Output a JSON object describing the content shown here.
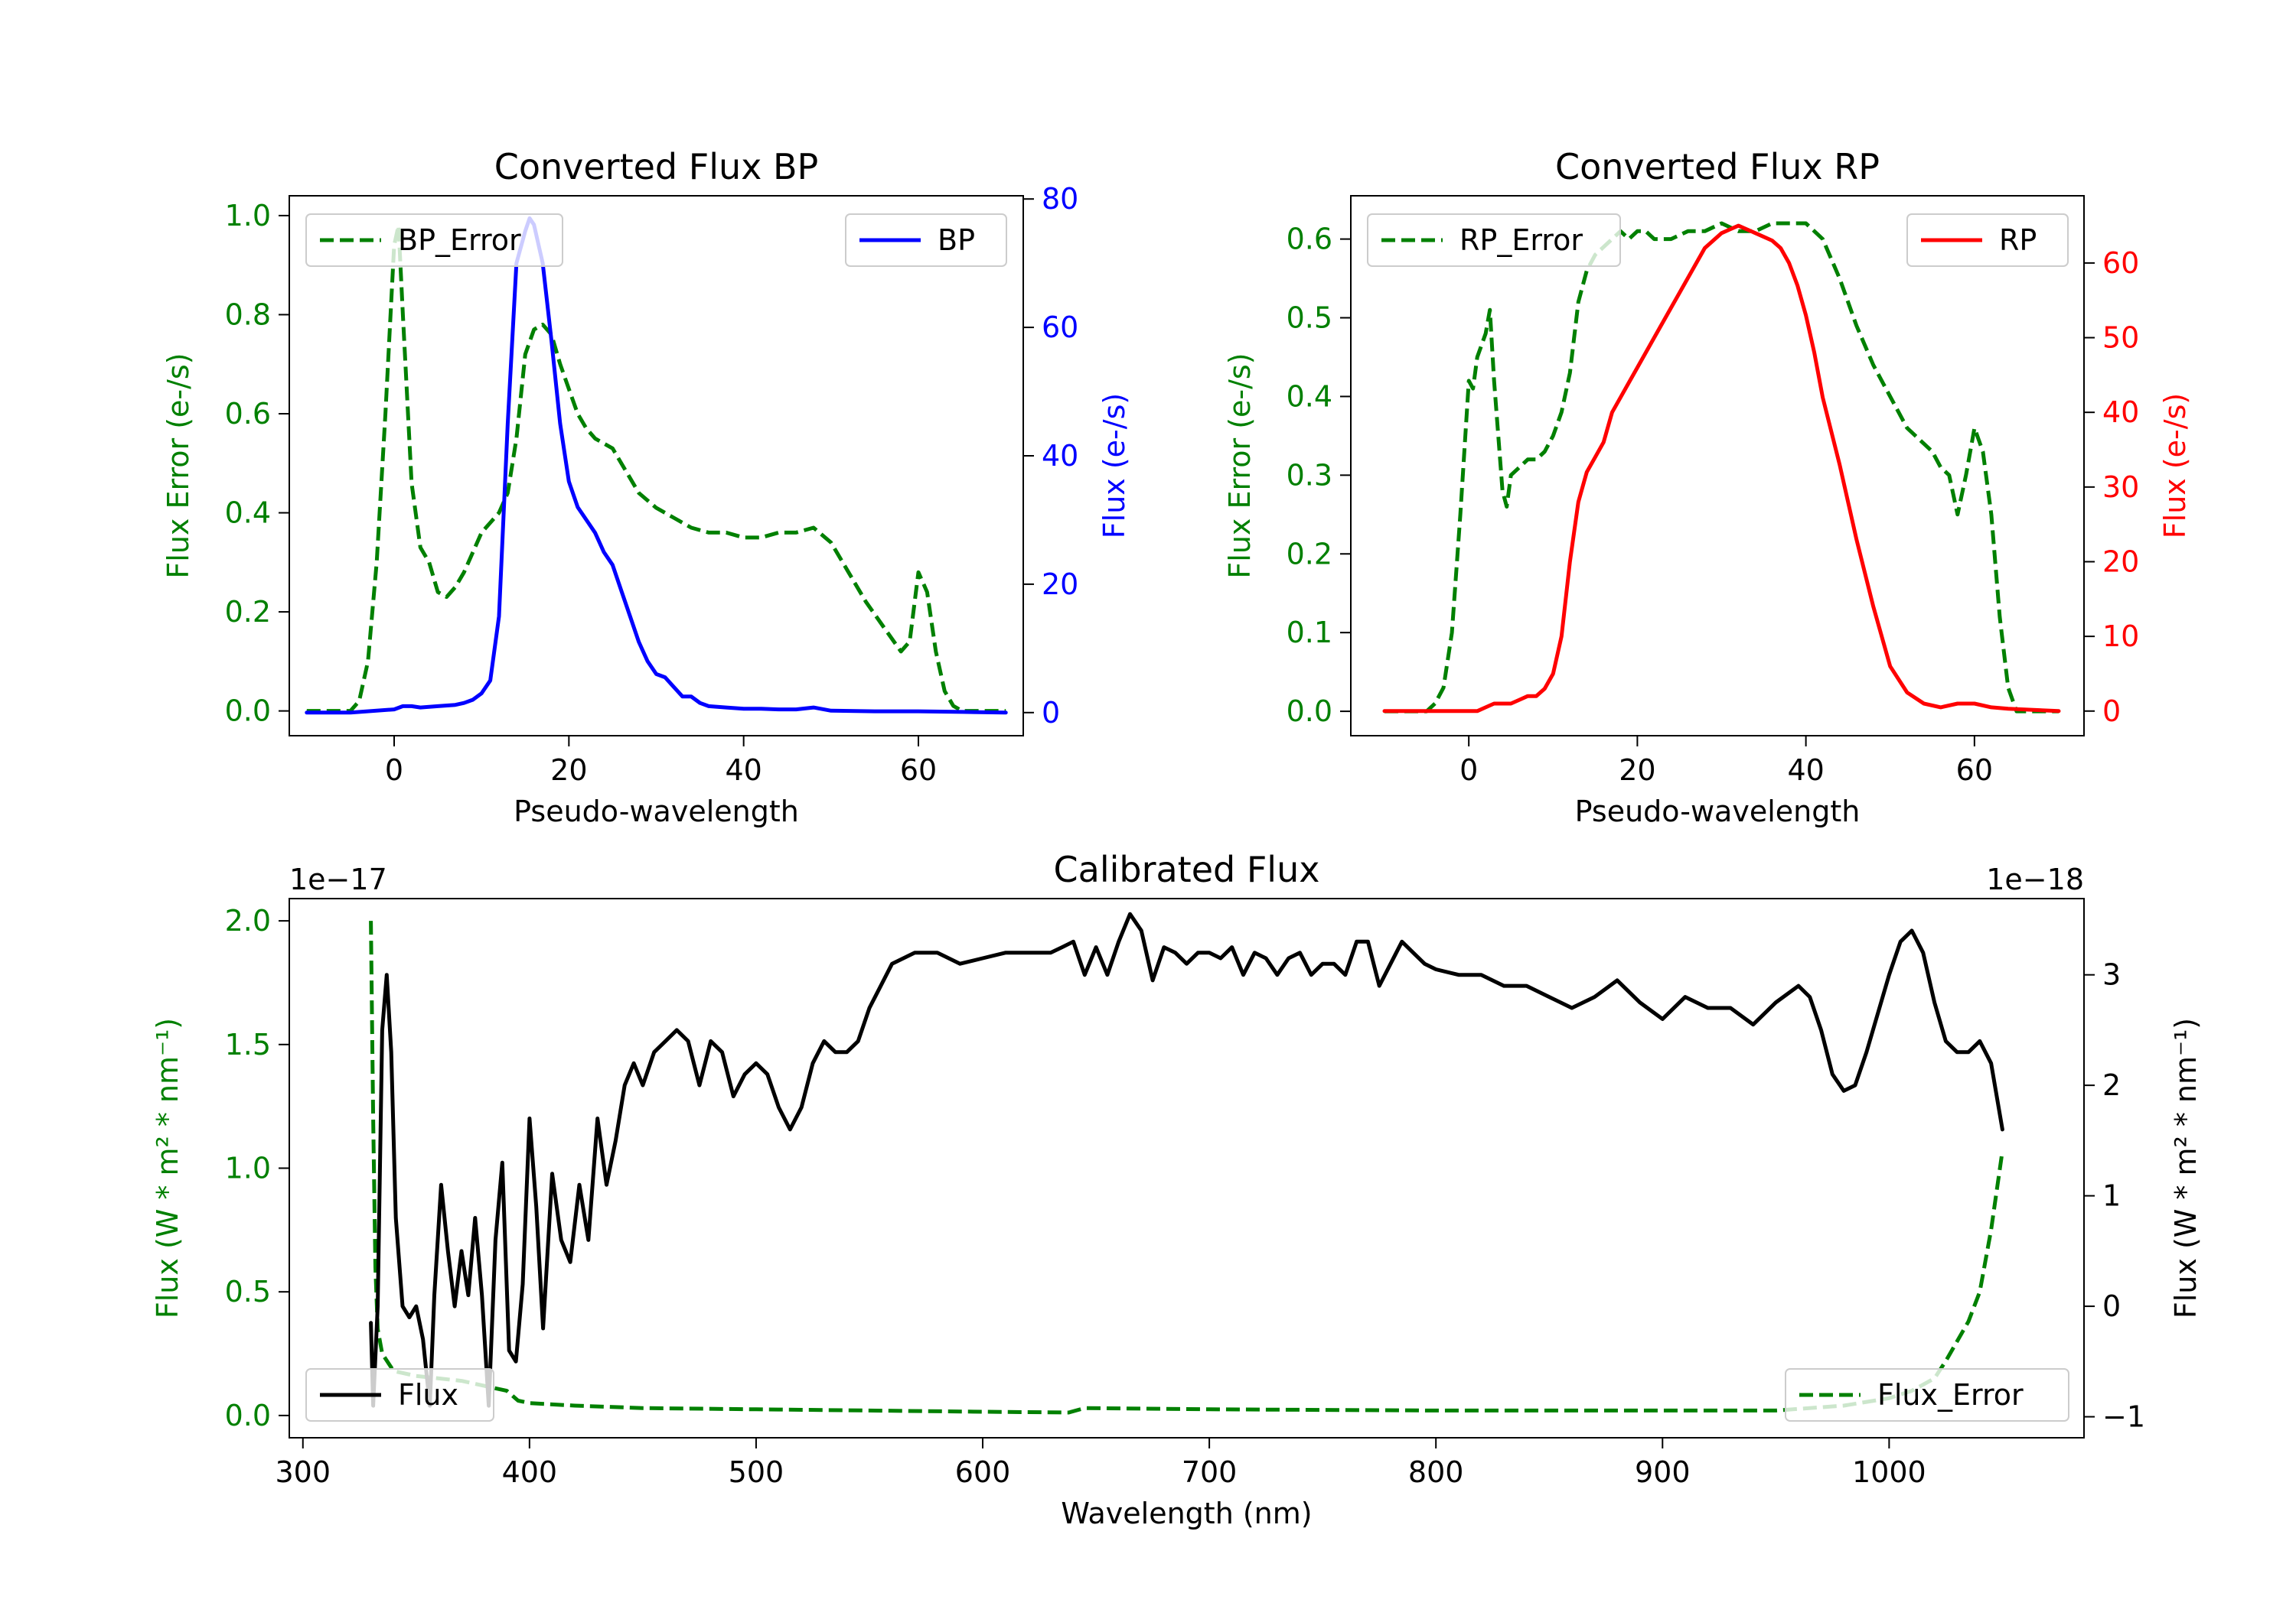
{
  "chart_data": [
    {
      "id": "bp",
      "type": "line",
      "title": "Converted Flux BP",
      "xlabel": "Pseudo-wavelength",
      "ylabel_left": "Flux Error (e-/s)",
      "ylabel_right": "Flux (e-/s)",
      "xlim": [
        -12,
        72
      ],
      "ylim_left": [
        -0.05,
        1.04
      ],
      "ylim_right": [
        -3.6,
        80.5
      ],
      "xticks": [
        0,
        20,
        40,
        60
      ],
      "yticks_left": [
        0.0,
        0.2,
        0.4,
        0.6,
        0.8,
        1.0
      ],
      "yticks_right": [
        0,
        20,
        40,
        60,
        80
      ],
      "left_color": "#008000",
      "right_color": "#0000ff",
      "series": [
        {
          "name": "BP_Error",
          "axis": "left",
          "style": "dashed",
          "color": "#008000",
          "legend": "top-left",
          "x": [
            -10,
            -5,
            -4,
            -3,
            -2,
            -1,
            0,
            0.5,
            1,
            2,
            3,
            4,
            5,
            6,
            7,
            8,
            9,
            10,
            11,
            12,
            13,
            14,
            15,
            16,
            17,
            18,
            19,
            20,
            21,
            22,
            23,
            24,
            25,
            26,
            27,
            28,
            30,
            32,
            34,
            36,
            38,
            40,
            42,
            44,
            46,
            48,
            50,
            52,
            54,
            56,
            58,
            59,
            60,
            61,
            62,
            63,
            64,
            65,
            66,
            70
          ],
          "values": [
            0.0,
            0.0,
            0.02,
            0.1,
            0.3,
            0.6,
            0.94,
            0.98,
            0.8,
            0.46,
            0.33,
            0.3,
            0.24,
            0.23,
            0.25,
            0.28,
            0.32,
            0.36,
            0.38,
            0.4,
            0.44,
            0.55,
            0.72,
            0.77,
            0.78,
            0.76,
            0.7,
            0.65,
            0.6,
            0.57,
            0.55,
            0.54,
            0.53,
            0.5,
            0.47,
            0.44,
            0.41,
            0.39,
            0.37,
            0.36,
            0.36,
            0.35,
            0.35,
            0.36,
            0.36,
            0.37,
            0.34,
            0.28,
            0.22,
            0.17,
            0.12,
            0.14,
            0.28,
            0.24,
            0.12,
            0.04,
            0.01,
            0.0,
            0.0,
            0.0
          ]
        },
        {
          "name": "BP",
          "axis": "right",
          "style": "solid",
          "color": "#0000ff",
          "legend": "top-right",
          "x": [
            -10,
            -5,
            0,
            1,
            2,
            3,
            5,
            7,
            8,
            9,
            10,
            11,
            12,
            13,
            14,
            15,
            15.5,
            16,
            17,
            18,
            19,
            20,
            21,
            22,
            23,
            24,
            25,
            26,
            27,
            28,
            29,
            30,
            31,
            32,
            33,
            34,
            35,
            36,
            38,
            40,
            42,
            44,
            46,
            48,
            50,
            55,
            60,
            65,
            70
          ],
          "values": [
            0,
            0,
            0.5,
            1,
            1,
            0.8,
            1,
            1.2,
            1.5,
            2,
            3,
            5,
            15,
            45,
            70,
            75,
            77,
            76,
            70,
            58,
            45,
            36,
            32,
            30,
            28,
            25,
            23,
            19,
            15,
            11,
            8,
            6,
            5.5,
            4,
            2.5,
            2.5,
            1.5,
            1,
            0.8,
            0.6,
            0.6,
            0.5,
            0.5,
            0.8,
            0.3,
            0.2,
            0.2,
            0.1,
            0
          ]
        }
      ]
    },
    {
      "id": "rp",
      "type": "line",
      "title": "Converted Flux RP",
      "xlabel": "Pseudo-wavelength",
      "ylabel_left": "Flux Error (e-/s)",
      "ylabel_right": "Flux (e-/s)",
      "xlim": [
        -14,
        73
      ],
      "ylim_left": [
        -0.031,
        0.655
      ],
      "ylim_right": [
        -3.3,
        69
      ],
      "xticks": [
        0,
        20,
        40,
        60
      ],
      "yticks_left": [
        0.0,
        0.1,
        0.2,
        0.3,
        0.4,
        0.5,
        0.6
      ],
      "yticks_right": [
        0,
        10,
        20,
        30,
        40,
        50,
        60
      ],
      "left_color": "#008000",
      "right_color": "#ff0000",
      "series": [
        {
          "name": "RP_Error",
          "axis": "left",
          "style": "dashed",
          "color": "#008000",
          "legend": "top-left",
          "x": [
            -10,
            -5,
            -4,
            -3,
            -2,
            -1,
            0,
            0.5,
            1,
            2,
            2.5,
            3,
            4,
            4.5,
            5,
            6,
            7,
            8,
            9,
            10,
            11,
            12,
            13,
            14,
            15,
            16,
            17,
            18,
            19,
            20,
            21,
            22,
            24,
            26,
            28,
            30,
            32,
            34,
            36,
            38,
            40,
            42,
            44,
            46,
            48,
            50,
            52,
            54,
            55,
            56,
            57,
            58,
            59,
            60,
            61,
            62,
            63,
            64,
            65,
            70
          ],
          "values": [
            0.0,
            0.0,
            0.01,
            0.03,
            0.1,
            0.25,
            0.42,
            0.41,
            0.45,
            0.48,
            0.51,
            0.42,
            0.28,
            0.26,
            0.3,
            0.31,
            0.32,
            0.32,
            0.33,
            0.35,
            0.38,
            0.43,
            0.52,
            0.56,
            0.58,
            0.59,
            0.6,
            0.61,
            0.6,
            0.61,
            0.61,
            0.6,
            0.6,
            0.61,
            0.61,
            0.62,
            0.61,
            0.61,
            0.62,
            0.62,
            0.62,
            0.6,
            0.55,
            0.49,
            0.44,
            0.4,
            0.36,
            0.34,
            0.33,
            0.31,
            0.3,
            0.25,
            0.3,
            0.36,
            0.33,
            0.25,
            0.12,
            0.03,
            0.0,
            0.0
          ]
        },
        {
          "name": "RP",
          "axis": "right",
          "style": "solid",
          "color": "#ff0000",
          "legend": "top-right",
          "x": [
            -10,
            -5,
            0,
            1,
            2,
            3,
            4,
            5,
            6,
            7,
            8,
            9,
            10,
            11,
            12,
            13,
            14,
            15,
            16,
            17,
            18,
            19,
            20,
            22,
            24,
            26,
            28,
            30,
            31,
            32,
            33,
            34,
            35,
            36,
            37,
            38,
            39,
            40,
            41,
            42,
            44,
            46,
            48,
            50,
            52,
            54,
            56,
            58,
            60,
            62,
            64,
            66,
            70
          ],
          "values": [
            0,
            0,
            0,
            0,
            0.5,
            1,
            1,
            1,
            1.5,
            2,
            2,
            3,
            5,
            10,
            20,
            28,
            32,
            34,
            36,
            40,
            42,
            44,
            46,
            50,
            54,
            58,
            62,
            64,
            64.5,
            65,
            64.5,
            64,
            63.5,
            63,
            62,
            60,
            57,
            53,
            48,
            42,
            33,
            23,
            14,
            6,
            2.5,
            1,
            0.5,
            1,
            1,
            0.5,
            0.3,
            0.2,
            0
          ]
        }
      ]
    },
    {
      "id": "cal",
      "type": "line",
      "title": "Calibrated Flux",
      "xlabel": "Wavelength (nm)",
      "ylabel_left": "Flux (W * m² * nm⁻¹)",
      "ylabel_right": "Flux (W * m² * nm⁻¹)",
      "offset_left": "1e−17",
      "offset_right": "1e−18",
      "xlim": [
        294,
        1086
      ],
      "ylim_left": [
        -0.09,
        2.09
      ],
      "ylim_right": [
        -1.19,
        3.69
      ],
      "xticks": [
        300,
        400,
        500,
        600,
        700,
        800,
        900,
        1000
      ],
      "yticks_left": [
        0.0,
        0.5,
        1.0,
        1.5,
        2.0
      ],
      "yticks_right": [
        -1,
        0,
        1,
        2,
        3
      ],
      "left_color": "#008000",
      "right_color": "#000000",
      "series": [
        {
          "name": "Flux_Error",
          "axis": "left",
          "style": "dashed",
          "color": "#008000",
          "legend": "bottom-right",
          "x": [
            330,
            331,
            332,
            333,
            335,
            340,
            350,
            360,
            370,
            380,
            390,
            395,
            400,
            420,
            450,
            500,
            600,
            638,
            645,
            700,
            800,
            900,
            950,
            980,
            1000,
            1010,
            1020,
            1025,
            1030,
            1035,
            1040,
            1045,
            1050
          ],
          "values": [
            2.0,
            1.2,
            0.6,
            0.35,
            0.25,
            0.18,
            0.16,
            0.15,
            0.14,
            0.12,
            0.1,
            0.06,
            0.05,
            0.04,
            0.03,
            0.025,
            0.015,
            0.012,
            0.03,
            0.025,
            0.02,
            0.02,
            0.02,
            0.04,
            0.07,
            0.1,
            0.15,
            0.22,
            0.3,
            0.38,
            0.5,
            0.75,
            1.07
          ]
        },
        {
          "name": "Flux",
          "axis": "right",
          "style": "solid",
          "color": "#000000",
          "legend": "bottom-left",
          "x": [
            330,
            331,
            333,
            335,
            337,
            339,
            341,
            344,
            347,
            350,
            353,
            356,
            358,
            361,
            364,
            367,
            370,
            373,
            376,
            379,
            382,
            385,
            388,
            391,
            394,
            397,
            400,
            403,
            406,
            410,
            414,
            418,
            422,
            426,
            430,
            434,
            438,
            442,
            446,
            450,
            455,
            460,
            465,
            470,
            475,
            480,
            485,
            490,
            495,
            500,
            505,
            510,
            515,
            520,
            525,
            530,
            535,
            540,
            545,
            550,
            560,
            570,
            580,
            590,
            600,
            610,
            620,
            630,
            635,
            640,
            645,
            650,
            655,
            660,
            665,
            670,
            675,
            680,
            685,
            690,
            695,
            700,
            705,
            710,
            715,
            720,
            725,
            730,
            735,
            740,
            745,
            750,
            755,
            760,
            765,
            770,
            775,
            780,
            785,
            790,
            795,
            800,
            810,
            820,
            830,
            840,
            850,
            860,
            870,
            880,
            890,
            900,
            910,
            920,
            930,
            940,
            950,
            960,
            965,
            970,
            975,
            980,
            985,
            990,
            1000,
            1005,
            1010,
            1015,
            1020,
            1025,
            1030,
            1035,
            1040,
            1045,
            1050
          ],
          "values": [
            -0.15,
            -0.9,
            0.0,
            2.5,
            3.0,
            2.3,
            0.8,
            0.0,
            -0.1,
            0.0,
            -0.3,
            -0.9,
            0.1,
            1.1,
            0.5,
            0.0,
            0.5,
            0.1,
            0.8,
            0.1,
            -0.9,
            0.6,
            1.3,
            -0.4,
            -0.5,
            0.2,
            1.7,
            0.9,
            -0.2,
            1.2,
            0.6,
            0.4,
            1.1,
            0.6,
            1.7,
            1.1,
            1.5,
            2.0,
            2.2,
            2.0,
            2.3,
            2.4,
            2.5,
            2.4,
            2.0,
            2.4,
            2.3,
            1.9,
            2.1,
            2.2,
            2.1,
            1.8,
            1.6,
            1.8,
            2.2,
            2.4,
            2.3,
            2.3,
            2.4,
            2.7,
            3.1,
            3.2,
            3.2,
            3.1,
            3.15,
            3.2,
            3.2,
            3.2,
            3.25,
            3.3,
            3.0,
            3.25,
            3.0,
            3.3,
            3.55,
            3.4,
            2.95,
            3.25,
            3.2,
            3.1,
            3.2,
            3.2,
            3.15,
            3.25,
            3.0,
            3.2,
            3.15,
            3.0,
            3.15,
            3.2,
            3.0,
            3.1,
            3.1,
            3.0,
            3.3,
            3.3,
            2.9,
            3.1,
            3.3,
            3.2,
            3.1,
            3.05,
            3.0,
            3.0,
            2.9,
            2.9,
            2.8,
            2.7,
            2.8,
            2.95,
            2.75,
            2.6,
            2.8,
            2.7,
            2.7,
            2.55,
            2.75,
            2.9,
            2.8,
            2.5,
            2.1,
            1.95,
            2.0,
            2.3,
            3.0,
            3.3,
            3.4,
            3.2,
            2.75,
            2.4,
            2.3,
            2.3,
            2.4,
            2.2,
            1.6
          ]
        }
      ]
    }
  ]
}
